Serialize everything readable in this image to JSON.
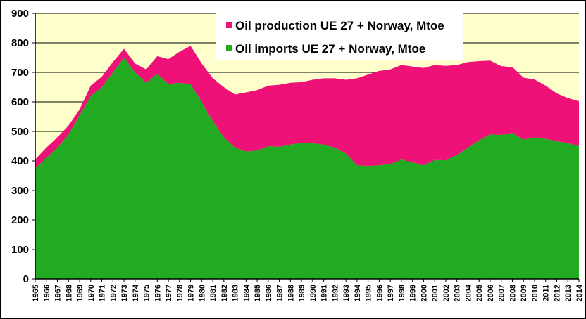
{
  "chart_data": {
    "type": "area",
    "stacked": true,
    "title": "",
    "xlabel": "",
    "ylabel": "",
    "ylim": [
      0,
      900
    ],
    "yticks": [
      0,
      100,
      200,
      300,
      400,
      500,
      600,
      700,
      800,
      900
    ],
    "grid": true,
    "legend_position": "top-right",
    "plot_background": "#ffffcc",
    "categories": [
      "1965",
      "1966",
      "1967",
      "1968",
      "1969",
      "1970",
      "1971",
      "1972",
      "1973",
      "1974",
      "1975",
      "1976",
      "1977",
      "1978",
      "1979",
      "1980",
      "1981",
      "1982",
      "1983",
      "1984",
      "1985",
      "1986",
      "1987",
      "1988",
      "1989",
      "1990",
      "1991",
      "1992",
      "1993",
      "1994",
      "1995",
      "1996",
      "1997",
      "1998",
      "1999",
      "2000",
      "2001",
      "2002",
      "2003",
      "2004",
      "2005",
      "2006",
      "2007",
      "2008",
      "2009",
      "2010",
      "2011",
      "2012",
      "2013",
      "2014"
    ],
    "series": [
      {
        "name": "Oil imports UE 27 + Norway, Mtoe",
        "color": "#22aa22",
        "values": [
          375,
          410,
          445,
          490,
          555,
          620,
          650,
          700,
          750,
          700,
          665,
          695,
          660,
          665,
          660,
          600,
          535,
          480,
          445,
          432,
          435,
          450,
          448,
          455,
          462,
          460,
          455,
          445,
          425,
          385,
          383,
          385,
          390,
          405,
          395,
          385,
          403,
          402,
          420,
          445,
          470,
          490,
          488,
          495,
          472,
          480,
          475,
          467,
          460,
          450
        ]
      },
      {
        "name": "Oil production UE 27 + Norway, Mtoe",
        "color": "#ee1177",
        "values": [
          30,
          35,
          35,
          30,
          20,
          35,
          35,
          35,
          30,
          30,
          45,
          60,
          85,
          105,
          130,
          130,
          145,
          170,
          180,
          200,
          205,
          205,
          210,
          210,
          205,
          215,
          225,
          235,
          250,
          295,
          310,
          320,
          320,
          320,
          325,
          330,
          322,
          320,
          305,
          290,
          268,
          250,
          233,
          223,
          210,
          196,
          180,
          162,
          153,
          152
        ]
      }
    ]
  }
}
